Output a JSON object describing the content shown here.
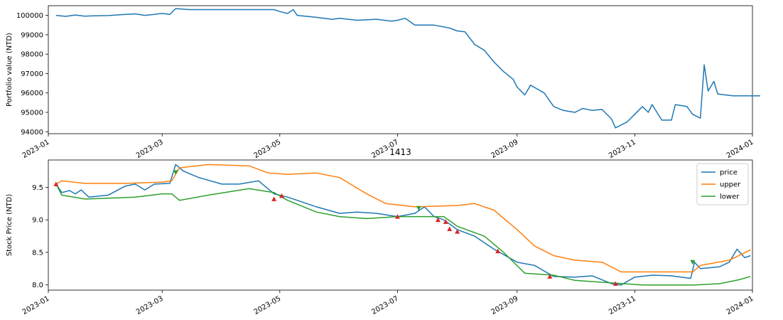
{
  "chart_data": [
    {
      "type": "line",
      "title": "",
      "xlabel": "",
      "ylabel": "Portfolio value (NTD)",
      "xlim": [
        "2023-01-01",
        "2024-01-01"
      ],
      "ylim": [
        93900,
        100500
      ],
      "x_ticks": [
        "2023-01",
        "2023-03",
        "2023-05",
        "2023-07",
        "2023-09",
        "2023-11",
        "2024-01"
      ],
      "y_ticks": [
        94000,
        95000,
        96000,
        97000,
        98000,
        99000,
        100000
      ],
      "grid": false,
      "colors": {
        "portfolio": "#1f77b4"
      },
      "series": [
        {
          "name": "",
          "points": [
            [
              "2023-01-05",
              100000
            ],
            [
              "2023-01-10",
              99950
            ],
            [
              "2023-01-15",
              100020
            ],
            [
              "2023-01-20",
              99960
            ],
            [
              "2023-01-25",
              99980
            ],
            [
              "2023-02-01",
              99990
            ],
            [
              "2023-02-10",
              100050
            ],
            [
              "2023-02-15",
              100080
            ],
            [
              "2023-02-20",
              100000
            ],
            [
              "2023-02-25",
              100050
            ],
            [
              "2023-03-01",
              100100
            ],
            [
              "2023-03-05",
              100050
            ],
            [
              "2023-03-08",
              100350
            ],
            [
              "2023-03-15",
              100300
            ],
            [
              "2023-04-01",
              100300
            ],
            [
              "2023-04-15",
              100300
            ],
            [
              "2023-04-28",
              100300
            ],
            [
              "2023-05-01",
              100200
            ],
            [
              "2023-05-05",
              100100
            ],
            [
              "2023-05-08",
              100300
            ],
            [
              "2023-05-10",
              100000
            ],
            [
              "2023-05-20",
              99900
            ],
            [
              "2023-05-28",
              99800
            ],
            [
              "2023-06-01",
              99850
            ],
            [
              "2023-06-10",
              99750
            ],
            [
              "2023-06-20",
              99800
            ],
            [
              "2023-06-28",
              99700
            ],
            [
              "2023-07-01",
              99750
            ],
            [
              "2023-07-05",
              99850
            ],
            [
              "2023-07-10",
              99500
            ],
            [
              "2023-07-20",
              99500
            ],
            [
              "2023-07-28",
              99350
            ],
            [
              "2023-08-01",
              99200
            ],
            [
              "2023-08-05",
              99150
            ],
            [
              "2023-08-10",
              98500
            ],
            [
              "2023-08-15",
              98200
            ],
            [
              "2023-08-20",
              97600
            ],
            [
              "2023-08-25",
              97100
            ],
            [
              "2023-08-30",
              96700
            ],
            [
              "2023-09-01",
              96300
            ],
            [
              "2023-09-05",
              95900
            ],
            [
              "2023-09-08",
              96400
            ],
            [
              "2023-09-15",
              96000
            ],
            [
              "2023-09-20",
              95300
            ],
            [
              "2023-09-25",
              95100
            ],
            [
              "2023-10-01",
              95000
            ],
            [
              "2023-10-05",
              95200
            ],
            [
              "2023-10-10",
              95100
            ],
            [
              "2023-10-15",
              95150
            ],
            [
              "2023-10-20",
              94650
            ],
            [
              "2023-10-22",
              94200
            ],
            [
              "2023-10-28",
              94500
            ],
            [
              "2023-11-01",
              94900
            ],
            [
              "2023-11-05",
              95300
            ],
            [
              "2023-11-08",
              95000
            ],
            [
              "2023-11-10",
              95400
            ],
            [
              "2023-11-15",
              94600
            ],
            [
              "2023-11-20",
              94600
            ],
            [
              "2023-11-22",
              95400
            ],
            [
              "2023-11-28",
              95300
            ],
            [
              "2023-12-01",
              94900
            ],
            [
              "2023-12-05",
              94700
            ],
            [
              "2023-12-07",
              97450
            ],
            [
              "2023-12-09",
              96100
            ],
            [
              "2023-12-12",
              96600
            ],
            [
              "2023-12-14",
              95950
            ],
            [
              "2023-12-18",
              95900
            ],
            [
              "2023-12-22",
              95850
            ],
            [
              "2023-12-28",
              95850
            ],
            [
              "2024-01-01",
              95850
            ],
            [
              "2024-01-05",
              95850
            ]
          ]
        }
      ]
    },
    {
      "type": "line",
      "title": "1413",
      "xlabel": "",
      "ylabel": "Stock Price (NTD)",
      "xlim": [
        "2023-01-01",
        "2024-01-01"
      ],
      "ylim": [
        7.92,
        9.92
      ],
      "x_ticks": [
        "2023-01",
        "2023-03",
        "2023-05",
        "2023-07",
        "2023-09",
        "2023-11",
        "2024-01"
      ],
      "y_ticks": [
        8.0,
        8.5,
        9.0,
        9.5
      ],
      "grid": false,
      "legend_position": "top-right",
      "colors": {
        "price": "#1f77b4",
        "upper": "#ff7f0e",
        "lower": "#2ca02c",
        "buy_marker": "#d62728",
        "sell_marker": "#2ca02c"
      },
      "series": [
        {
          "name": "price",
          "points": [
            [
              "2023-01-05",
              9.55
            ],
            [
              "2023-01-08",
              9.42
            ],
            [
              "2023-01-12",
              9.45
            ],
            [
              "2023-01-15",
              9.4
            ],
            [
              "2023-01-18",
              9.46
            ],
            [
              "2023-01-22",
              9.35
            ],
            [
              "2023-02-01",
              9.38
            ],
            [
              "2023-02-10",
              9.52
            ],
            [
              "2023-02-15",
              9.55
            ],
            [
              "2023-02-20",
              9.46
            ],
            [
              "2023-02-25",
              9.55
            ],
            [
              "2023-03-05",
              9.56
            ],
            [
              "2023-03-08",
              9.85
            ],
            [
              "2023-03-12",
              9.75
            ],
            [
              "2023-03-20",
              9.65
            ],
            [
              "2023-04-01",
              9.55
            ],
            [
              "2023-04-10",
              9.55
            ],
            [
              "2023-04-20",
              9.6
            ],
            [
              "2023-04-28",
              9.4
            ],
            [
              "2023-05-05",
              9.35
            ],
            [
              "2023-05-10",
              9.3
            ],
            [
              "2023-05-20",
              9.2
            ],
            [
              "2023-06-01",
              9.1
            ],
            [
              "2023-06-10",
              9.12
            ],
            [
              "2023-06-20",
              9.1
            ],
            [
              "2023-07-01",
              9.05
            ],
            [
              "2023-07-10",
              9.1
            ],
            [
              "2023-07-15",
              9.2
            ],
            [
              "2023-07-20",
              9.05
            ],
            [
              "2023-07-25",
              9.0
            ],
            [
              "2023-08-01",
              8.85
            ],
            [
              "2023-08-10",
              8.75
            ],
            [
              "2023-08-20",
              8.55
            ],
            [
              "2023-09-01",
              8.35
            ],
            [
              "2023-09-10",
              8.3
            ],
            [
              "2023-09-20",
              8.13
            ],
            [
              "2023-10-01",
              8.12
            ],
            [
              "2023-10-10",
              8.14
            ],
            [
              "2023-10-20",
              8.02
            ],
            [
              "2023-10-25",
              8.0
            ],
            [
              "2023-11-01",
              8.12
            ],
            [
              "2023-11-10",
              8.15
            ],
            [
              "2023-11-20",
              8.14
            ],
            [
              "2023-11-30",
              8.1
            ],
            [
              "2023-12-02",
              8.35
            ],
            [
              "2023-12-05",
              8.25
            ],
            [
              "2023-12-15",
              8.28
            ],
            [
              "2023-12-20",
              8.35
            ],
            [
              "2023-12-24",
              8.55
            ],
            [
              "2023-12-28",
              8.42
            ],
            [
              "2023-12-31",
              8.45
            ]
          ]
        },
        {
          "name": "upper",
          "points": [
            [
              "2023-01-05",
              9.55
            ],
            [
              "2023-01-08",
              9.6
            ],
            [
              "2023-01-20",
              9.56
            ],
            [
              "2023-02-10",
              9.56
            ],
            [
              "2023-03-01",
              9.58
            ],
            [
              "2023-03-06",
              9.6
            ],
            [
              "2023-03-10",
              9.8
            ],
            [
              "2023-03-25",
              9.85
            ],
            [
              "2023-04-15",
              9.83
            ],
            [
              "2023-04-25",
              9.72
            ],
            [
              "2023-05-05",
              9.7
            ],
            [
              "2023-05-20",
              9.72
            ],
            [
              "2023-06-01",
              9.65
            ],
            [
              "2023-06-15",
              9.4
            ],
            [
              "2023-06-25",
              9.25
            ],
            [
              "2023-07-10",
              9.2
            ],
            [
              "2023-08-01",
              9.22
            ],
            [
              "2023-08-10",
              9.25
            ],
            [
              "2023-08-20",
              9.15
            ],
            [
              "2023-09-01",
              8.85
            ],
            [
              "2023-09-10",
              8.6
            ],
            [
              "2023-09-20",
              8.45
            ],
            [
              "2023-10-01",
              8.38
            ],
            [
              "2023-10-15",
              8.35
            ],
            [
              "2023-10-25",
              8.2
            ],
            [
              "2023-11-10",
              8.2
            ],
            [
              "2023-12-01",
              8.2
            ],
            [
              "2023-12-05",
              8.3
            ],
            [
              "2023-12-20",
              8.38
            ],
            [
              "2023-12-31",
              8.54
            ]
          ]
        },
        {
          "name": "lower",
          "points": [
            [
              "2023-01-05",
              9.55
            ],
            [
              "2023-01-08",
              9.38
            ],
            [
              "2023-01-20",
              9.32
            ],
            [
              "2023-02-15",
              9.35
            ],
            [
              "2023-03-01",
              9.4
            ],
            [
              "2023-03-06",
              9.4
            ],
            [
              "2023-03-10",
              9.3
            ],
            [
              "2023-03-25",
              9.38
            ],
            [
              "2023-04-15",
              9.48
            ],
            [
              "2023-04-28",
              9.42
            ],
            [
              "2023-05-05",
              9.3
            ],
            [
              "2023-05-20",
              9.12
            ],
            [
              "2023-06-01",
              9.05
            ],
            [
              "2023-06-15",
              9.02
            ],
            [
              "2023-07-01",
              9.05
            ],
            [
              "2023-07-25",
              9.05
            ],
            [
              "2023-08-01",
              8.9
            ],
            [
              "2023-08-15",
              8.75
            ],
            [
              "2023-08-25",
              8.5
            ],
            [
              "2023-09-05",
              8.18
            ],
            [
              "2023-09-20",
              8.15
            ],
            [
              "2023-10-01",
              8.07
            ],
            [
              "2023-10-20",
              8.03
            ],
            [
              "2023-11-05",
              8.0
            ],
            [
              "2023-11-25",
              8.0
            ],
            [
              "2023-12-02",
              8.0
            ],
            [
              "2023-12-15",
              8.02
            ],
            [
              "2023-12-25",
              8.08
            ],
            [
              "2023-12-31",
              8.13
            ]
          ]
        }
      ],
      "buy_markers": [
        [
          "2023-01-05",
          9.55
        ],
        [
          "2023-04-28",
          9.32
        ],
        [
          "2023-05-02",
          9.37
        ],
        [
          "2023-07-01",
          9.05
        ],
        [
          "2023-07-22",
          9.0
        ],
        [
          "2023-07-26",
          8.97
        ],
        [
          "2023-07-28",
          8.86
        ],
        [
          "2023-08-01",
          8.82
        ],
        [
          "2023-08-22",
          8.52
        ],
        [
          "2023-09-18",
          8.13
        ],
        [
          "2023-10-22",
          8.02
        ]
      ],
      "sell_markers": [
        [
          "2023-03-08",
          9.73
        ],
        [
          "2023-07-12",
          9.18
        ],
        [
          "2023-12-01",
          8.35
        ]
      ]
    }
  ]
}
